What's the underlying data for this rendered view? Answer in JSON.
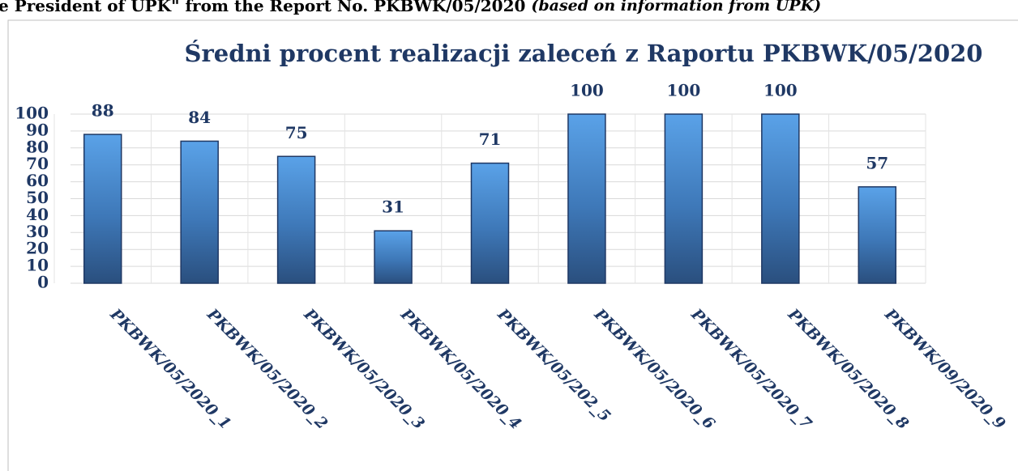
{
  "caption": {
    "main": "e President of UPK\" from the Report No. PKBWK/05/2020",
    "note": "(based on information from UPK)"
  },
  "chart_data": {
    "type": "bar",
    "title": "Średni procent realizacji zaleceń z Raportu PKBWK/05/2020",
    "categories": [
      "PKBWK/05/2020_1",
      "PKBWK/05/2020_2",
      "PKBWK/05/2020_3",
      "PKBWK/05/2020_4",
      "PKBWK/05/202_5",
      "PKBWK/05/2020_6",
      "PKBWK/05/2020_7",
      "PKBWK/05/2020_8",
      "PKBWK/09/2020_9"
    ],
    "values": [
      88,
      84,
      75,
      31,
      71,
      100,
      100,
      100,
      57
    ],
    "color": "#4a8fd8",
    "ylim": [
      0,
      100
    ],
    "yticks": [
      0,
      10,
      20,
      30,
      40,
      50,
      60,
      70,
      80,
      90,
      100
    ],
    "grid": true
  }
}
